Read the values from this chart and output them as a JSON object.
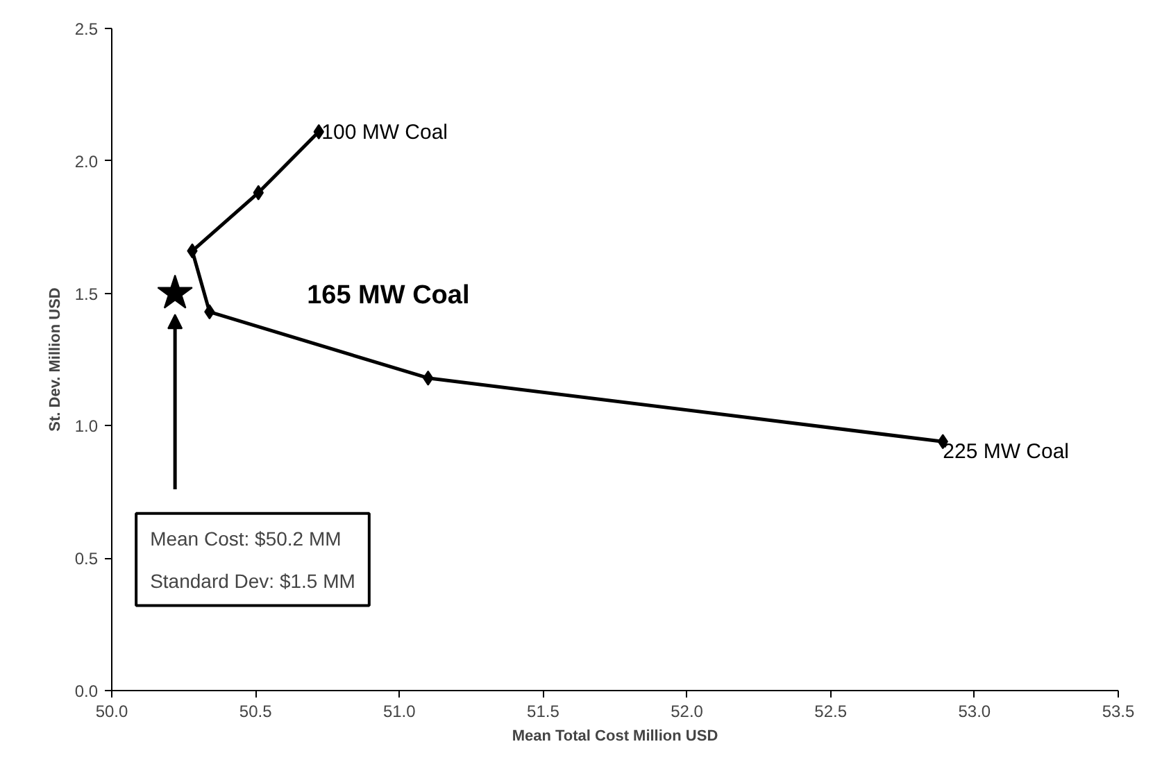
{
  "chart_data": {
    "type": "line",
    "xlabel": "Mean Total Cost Million USD",
    "ylabel": "St. Dev. Million USD",
    "series": [
      {
        "color": "#000000",
        "marker": "diamond",
        "x": [
          50.72,
          50.51,
          50.28,
          50.34,
          51.1,
          52.89
        ],
        "values": [
          2.11,
          1.88,
          1.66,
          1.43,
          1.18,
          0.94
        ]
      },
      {
        "type": "scatter",
        "color": "#000000",
        "marker": "star",
        "x": [
          50.22
        ],
        "values": [
          1.5
        ]
      }
    ],
    "xlim": [
      50.0,
      53.5
    ],
    "xticks": [
      {
        "value": 50.0,
        "label": "50.0"
      },
      {
        "value": 50.5,
        "label": "50.5"
      },
      {
        "value": 51.0,
        "label": "51.0"
      },
      {
        "value": 51.5,
        "label": "51.5"
      },
      {
        "value": 52.0,
        "label": "52.0"
      },
      {
        "value": 52.5,
        "label": "52.5"
      },
      {
        "value": 53.0,
        "label": "53.0"
      },
      {
        "value": 53.5,
        "label": "53.5"
      }
    ],
    "ylim": [
      0.0,
      2.5
    ],
    "yticks": [
      {
        "value": 0.0,
        "label": "0.0"
      },
      {
        "value": 0.5,
        "label": "0.5"
      },
      {
        "value": 1.0,
        "label": "1.0"
      },
      {
        "value": 1.5,
        "label": "1.5"
      },
      {
        "value": 2.0,
        "label": "2.0"
      },
      {
        "value": 2.5,
        "label": "2.5"
      }
    ],
    "grid": false,
    "annotations": [
      {
        "text": "100 MW Coal",
        "x": 50.72,
        "y": 2.11
      },
      "165 MW Coal",
      {
        "text": "225 MW Coal",
        "x": 52.89,
        "y": 0.94
      },
      "Mean Cost: $50.2 MM",
      "Standard Dev: $1.5 MM"
    ]
  }
}
